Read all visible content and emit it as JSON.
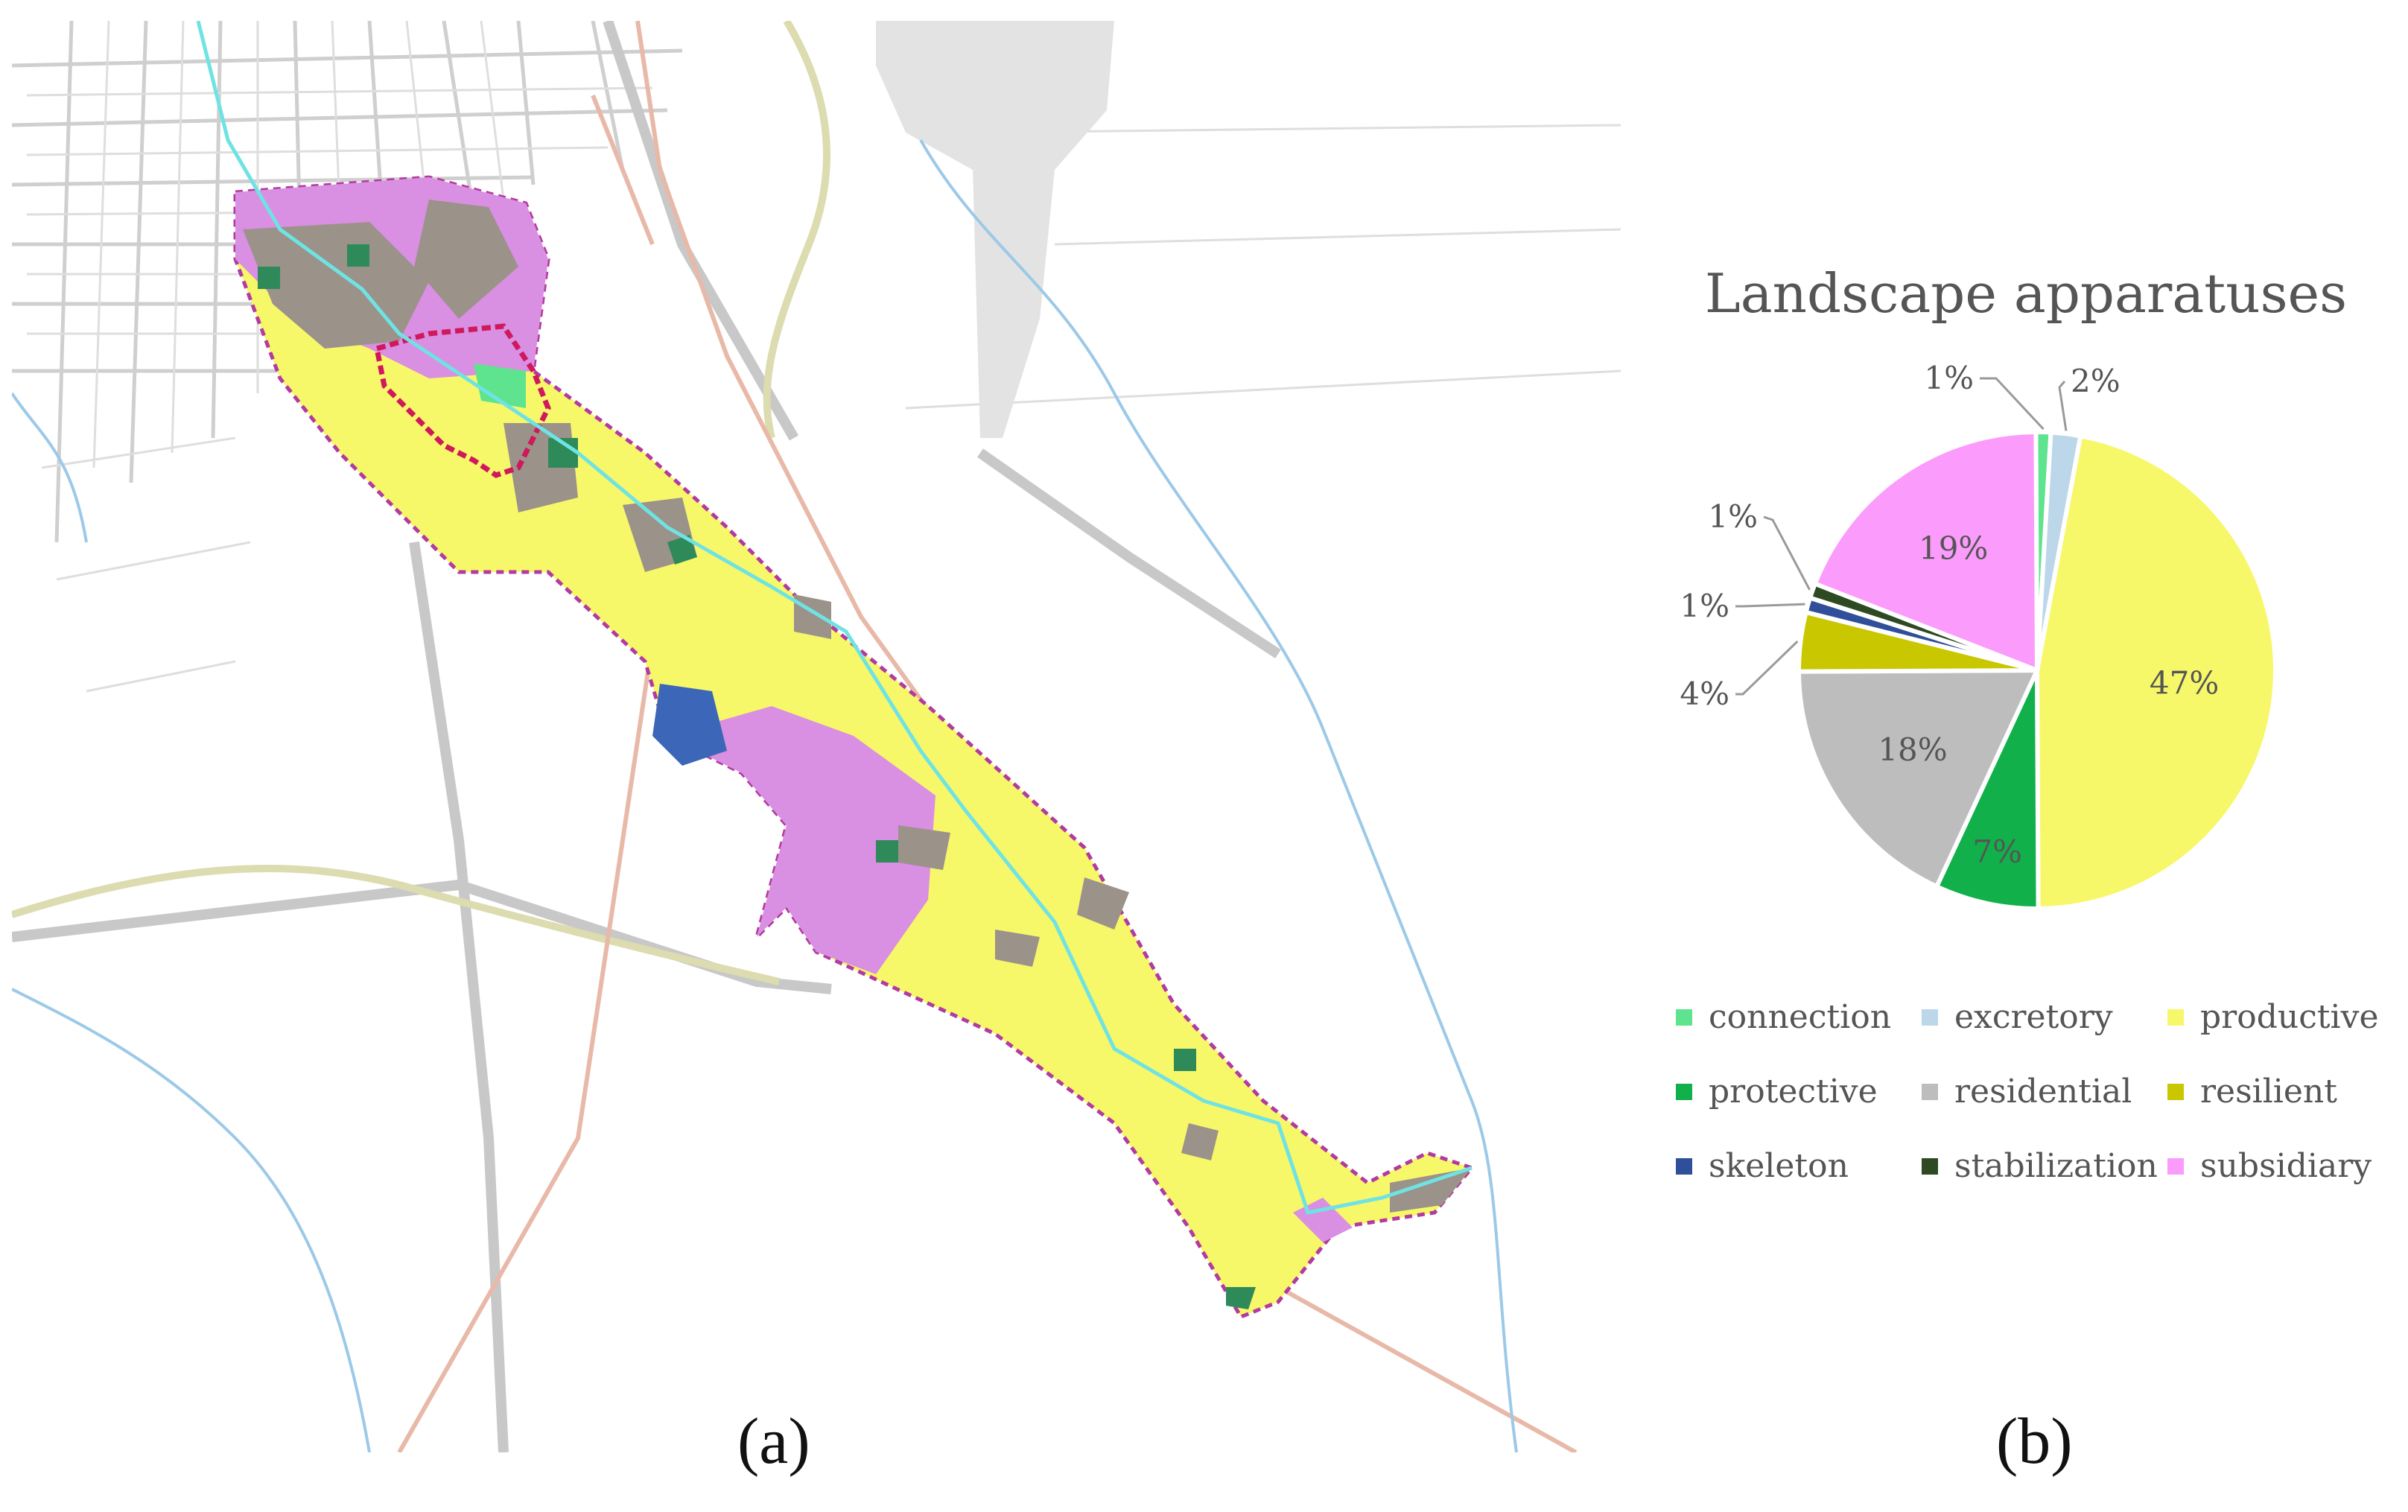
{
  "panel_labels": {
    "a": "(a)",
    "b": "(b)"
  },
  "chart_data": {
    "type": "pie",
    "title": "Landscape apparatuses",
    "slices": [
      {
        "name": "connection",
        "value": 1,
        "label": "1%",
        "color": "#5ee38f"
      },
      {
        "name": "excretory",
        "value": 2,
        "label": "2%",
        "color": "#bcd6ea"
      },
      {
        "name": "productive",
        "value": 47,
        "label": "47%",
        "color": "#f7f76a"
      },
      {
        "name": "protective",
        "value": 7,
        "label": "7%",
        "color": "#12b04a"
      },
      {
        "name": "residential",
        "value": 18,
        "label": "18%",
        "color": "#bdbdbd"
      },
      {
        "name": "resilient",
        "value": 4,
        "label": "4%",
        "color": "#c9c700"
      },
      {
        "name": "skeleton",
        "value": 1,
        "label": "1%",
        "color": "#2f4f9a"
      },
      {
        "name": "stabilization",
        "value": 1,
        "label": "1%",
        "color": "#2d4a22"
      },
      {
        "name": "subsidiary",
        "value": 19,
        "label": "19%",
        "color": "#fb9bfb"
      }
    ],
    "legend_placement": "bottom"
  }
}
